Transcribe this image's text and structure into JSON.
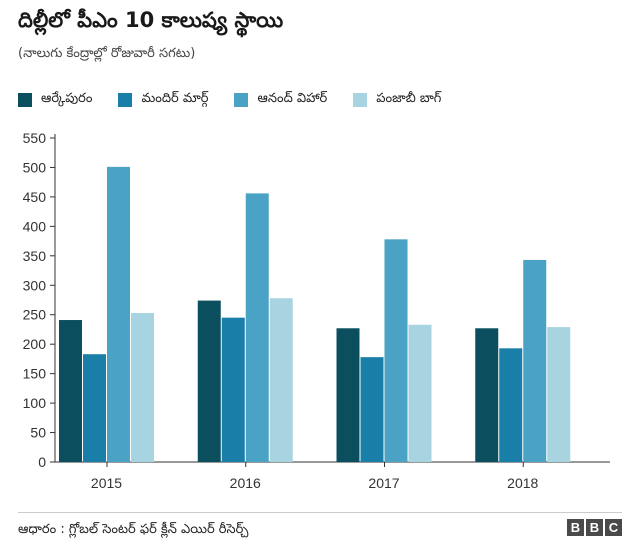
{
  "title": "దిల్లీలో పీఎం 10 కాలుష్య స్థాయి",
  "subtitle": "(నాలుగు కేంద్రాల్లో రోజువారీ సగటు)",
  "colors": [
    "#0b4f5e",
    "#1a7fa8",
    "#4aa3c4",
    "#a8d3e0"
  ],
  "chart_data": {
    "type": "bar",
    "categories": [
      "2015",
      "2016",
      "2017",
      "2018"
    ],
    "series": [
      {
        "name": "ఆర్కేపురం",
        "values": [
          241,
          274,
          227,
          227
        ]
      },
      {
        "name": "మందిర్ మార్గ్",
        "values": [
          183,
          245,
          178,
          193
        ]
      },
      {
        "name": "ఆనంద్ విహార్",
        "values": [
          501,
          456,
          378,
          343
        ]
      },
      {
        "name": "పంజాబీ బాగ్",
        "values": [
          253,
          278,
          233,
          229
        ]
      }
    ],
    "ylim": [
      0,
      550
    ],
    "yticks": [
      0,
      50,
      100,
      150,
      200,
      250,
      300,
      350,
      400,
      450,
      500,
      550
    ],
    "grid": false,
    "legend": "top-left",
    "xlabel": "",
    "ylabel": ""
  },
  "footer": {
    "source": "ఆధారం : గ్లోబల్ సెంటర్ ఫర్ క్లీన్ ఎయిర్ రీసెర్చ్",
    "logo": [
      "B",
      "B",
      "C"
    ]
  }
}
